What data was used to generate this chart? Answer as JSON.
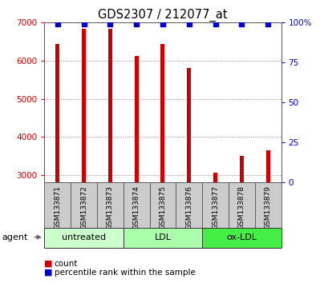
{
  "title": "GDS2307 / 212077_at",
  "samples": [
    "GSM133871",
    "GSM133872",
    "GSM133873",
    "GSM133874",
    "GSM133875",
    "GSM133876",
    "GSM133877",
    "GSM133878",
    "GSM133879"
  ],
  "counts": [
    6430,
    6840,
    6840,
    6130,
    6430,
    5800,
    3060,
    3500,
    3650
  ],
  "percentiles": [
    99,
    99,
    99,
    99,
    99,
    99,
    99,
    99,
    99
  ],
  "groups": [
    {
      "label": "untreated",
      "start": 0,
      "end": 3,
      "color": "#ccffcc"
    },
    {
      "label": "LDL",
      "start": 3,
      "end": 6,
      "color": "#aaffaa"
    },
    {
      "label": "ox-LDL",
      "start": 6,
      "end": 9,
      "color": "#44ee44"
    }
  ],
  "bar_color": "#cc0000",
  "percentile_color": "#0000cc",
  "ylim_left": [
    2800,
    7000
  ],
  "ylim_right": [
    0,
    100
  ],
  "yticks_left": [
    3000,
    4000,
    5000,
    6000,
    7000
  ],
  "yticks_right": [
    0,
    25,
    50,
    75,
    100
  ],
  "grid_color": "#888888",
  "bar_width": 0.15,
  "title_fontsize": 10.5,
  "tick_fontsize": 7.5,
  "sample_label_fontsize": 6.5,
  "group_label_fontsize": 8,
  "legend_fontsize": 7.5,
  "agent_fontsize": 8,
  "left_ylabel_color": "#cc0000",
  "right_ylabel_color": "#0000cc",
  "background_color": "#ffffff",
  "plot_bg_color": "#ffffff",
  "sample_bg_color": "#cccccc",
  "sample_edge_color": "#555555"
}
